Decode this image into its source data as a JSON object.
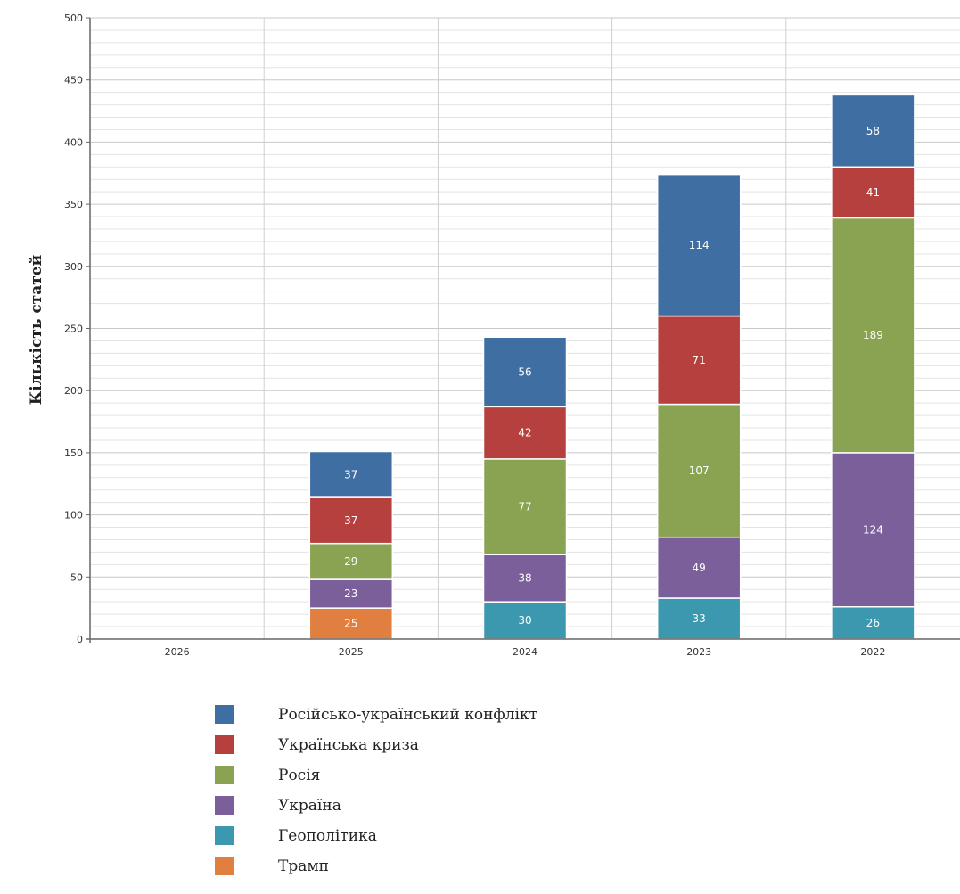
{
  "chart_data": {
    "type": "bar",
    "stacked": true,
    "ylabel": "Кількість статей",
    "ylim": [
      0,
      500
    ],
    "yticks": [
      0,
      50,
      100,
      150,
      200,
      250,
      300,
      350,
      400,
      450,
      500
    ],
    "grid": true,
    "legend_placement": "bottom",
    "categories": [
      "2026",
      "2025",
      "2024",
      "2023",
      "2022"
    ],
    "series": [
      {
        "name": "Трамп",
        "color": "#e07f3f",
        "values": [
          0,
          25,
          0,
          0,
          0
        ]
      },
      {
        "name": "Геополітика",
        "color": "#3c98ae",
        "values": [
          0,
          0,
          30,
          33,
          26
        ]
      },
      {
        "name": "Україна",
        "color": "#7b5f9b",
        "values": [
          0,
          23,
          38,
          49,
          124
        ]
      },
      {
        "name": "Росія",
        "color": "#8aa352",
        "values": [
          0,
          29,
          77,
          107,
          189
        ]
      },
      {
        "name": "Українська криза",
        "color": "#b6403d",
        "values": [
          0,
          37,
          42,
          71,
          41
        ]
      },
      {
        "name": "Російсько-український конфлікт",
        "color": "#3f6ea3",
        "values": [
          0,
          37,
          56,
          114,
          58
        ]
      }
    ],
    "legend_order": [
      "Російсько-український конфлікт",
      "Українська криза",
      "Росія",
      "Україна",
      "Геополітика",
      "Трамп"
    ]
  }
}
